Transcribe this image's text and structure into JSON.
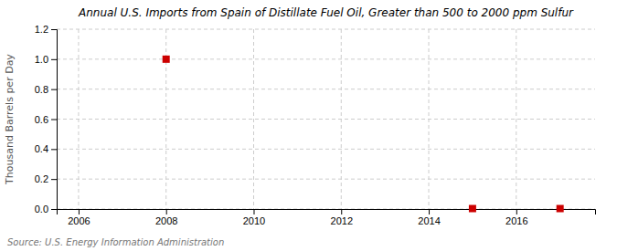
{
  "chart_data": {
    "type": "scatter",
    "title": "Annual U.S. Imports from Spain of Distillate Fuel Oil, Greater than 500 to 2000 ppm Sulfur",
    "ylabel": "Thousand Barrels per Day",
    "source": "Source: U.S. Energy Information Administration",
    "x": [
      2008,
      2015,
      2017
    ],
    "values": [
      1.0,
      0.003,
      0.003
    ],
    "color": "#CC0000",
    "marker": "square",
    "xlim": [
      2005.5,
      2017.8
    ],
    "ylim": [
      0,
      1.2
    ],
    "xticks": [
      2006,
      2008,
      2010,
      2012,
      2014,
      2016
    ],
    "yticks": [
      {
        "value": 0.0,
        "label": "0.0"
      },
      0.2,
      0.4,
      0.6,
      0.8,
      {
        "value": 1.0,
        "label": "1.0"
      },
      1.2
    ],
    "grid": true
  }
}
